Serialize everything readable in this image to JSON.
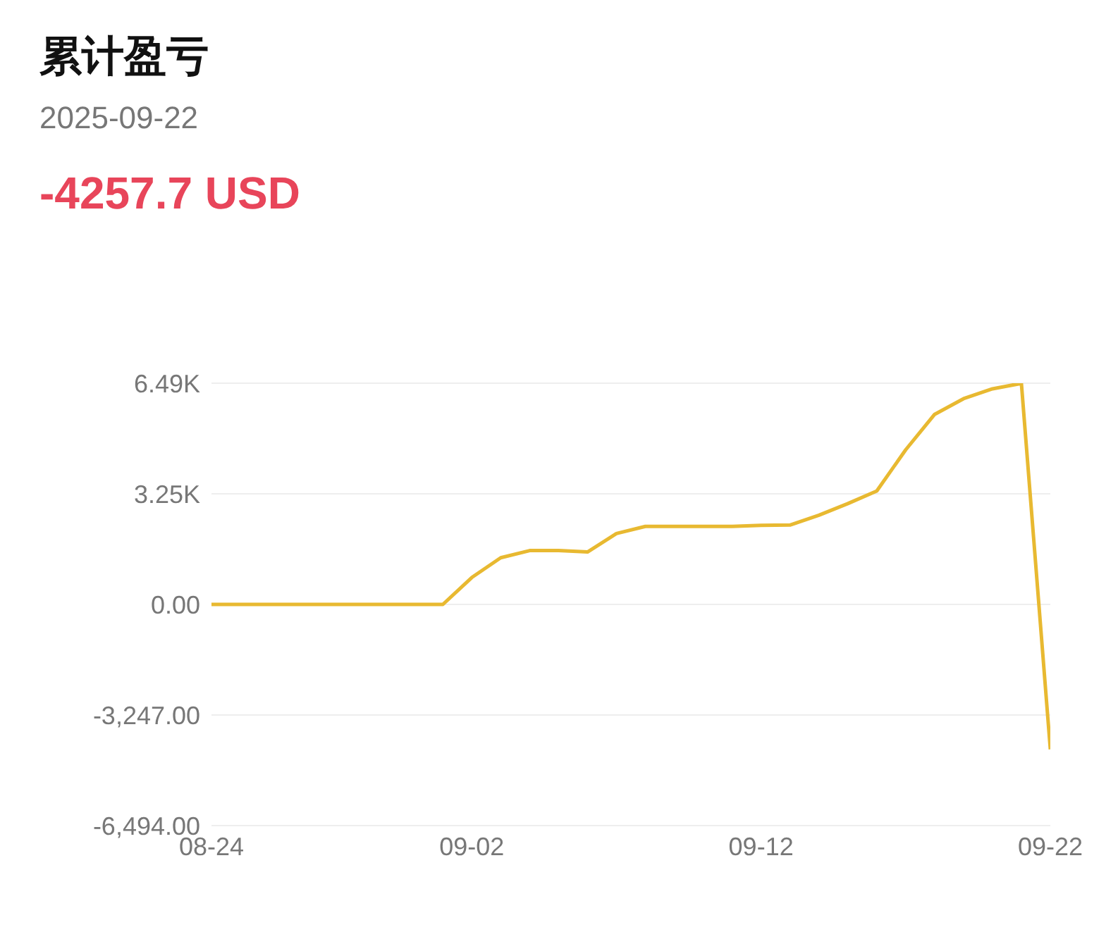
{
  "chart_data": {
    "type": "line",
    "title": "累计盈亏",
    "subtitle": "2025-09-22",
    "annotations": [
      "-4257.7 USD"
    ],
    "x": [
      "--08-24",
      "--08-25",
      "--08-26",
      "--08-27",
      "--08-28",
      "--08-29",
      "--08-30",
      "--08-31",
      "--09-01",
      "--09-02",
      "--09-03",
      "--09-04",
      "--09-05",
      "--09-06",
      "--09-07",
      "--09-08",
      "--09-09",
      "--09-10",
      "--09-11",
      "--09-12",
      "--09-13",
      "--09-14",
      "--09-15",
      "--09-16",
      "--09-17",
      "--09-18",
      "--09-19",
      "--09-20",
      "--09-21",
      "--09-22"
    ],
    "series": [
      {
        "color": "#e8b931",
        "values": [
          0,
          0,
          0,
          0,
          0,
          0,
          0,
          0,
          0,
          790,
          1370,
          1580,
          1580,
          1540,
          2080,
          2290,
          2290,
          2290,
          2290,
          2320,
          2330,
          2620,
          2960,
          3330,
          4540,
          5580,
          6040,
          6330,
          6490,
          -4257.7
        ]
      }
    ],
    "xlim": [
      "--08-24",
      "--09-22"
    ],
    "xticks": [
      {
        "value": "--08-24",
        "label": "08-24"
      },
      {
        "value": "--09-02",
        "label": "09-02"
      },
      {
        "value": "--09-12",
        "label": "09-12"
      },
      {
        "value": "--09-22",
        "label": "09-22"
      }
    ],
    "ylim": [
      -6494,
      6494
    ],
    "yticks": [
      {
        "value": 6494,
        "label": "6.49K"
      },
      {
        "value": 3247,
        "label": "3.25K"
      },
      {
        "value": 0,
        "label": "0.00"
      },
      {
        "value": -3247,
        "label": "-3,247.00"
      },
      {
        "value": -6494,
        "label": "-6,494.00"
      }
    ],
    "grid": "y",
    "marker": "none",
    "line_style": "solid",
    "legend": false
  }
}
